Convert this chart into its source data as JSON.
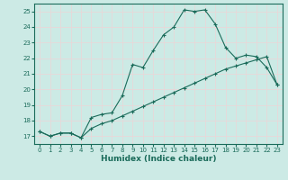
{
  "xlabel": "Humidex (Indice chaleur)",
  "bg_color": "#cceae5",
  "line_color": "#1a6b5a",
  "grid_color": "#e8d8d8",
  "xlim": [
    -0.5,
    23.5
  ],
  "ylim": [
    16.5,
    25.5
  ],
  "xticks": [
    0,
    1,
    2,
    3,
    4,
    5,
    6,
    7,
    8,
    9,
    10,
    11,
    12,
    13,
    14,
    15,
    16,
    17,
    18,
    19,
    20,
    21,
    22,
    23
  ],
  "yticks": [
    17,
    18,
    19,
    20,
    21,
    22,
    23,
    24,
    25
  ],
  "series1_x": [
    0,
    1,
    2,
    3,
    4,
    5,
    6,
    7,
    8,
    9,
    10,
    11,
    12,
    13,
    14,
    15,
    16,
    17,
    18,
    19,
    20,
    21,
    22,
    23
  ],
  "series1_y": [
    17.3,
    17.0,
    17.2,
    17.2,
    16.9,
    18.2,
    18.4,
    18.5,
    19.6,
    21.6,
    21.4,
    22.5,
    23.5,
    24.0,
    25.1,
    25.0,
    25.1,
    24.2,
    22.7,
    22.0,
    22.2,
    22.1,
    21.4,
    20.3
  ],
  "series2_x": [
    0,
    1,
    2,
    3,
    4,
    5,
    6,
    7,
    8,
    9,
    10,
    11,
    12,
    13,
    14,
    15,
    16,
    17,
    18,
    19,
    20,
    21,
    22,
    23
  ],
  "series2_y": [
    17.3,
    17.0,
    17.2,
    17.2,
    16.9,
    17.5,
    17.8,
    18.0,
    18.3,
    18.6,
    18.9,
    19.2,
    19.5,
    19.8,
    20.1,
    20.4,
    20.7,
    21.0,
    21.3,
    21.5,
    21.7,
    21.9,
    22.1,
    20.3
  ]
}
